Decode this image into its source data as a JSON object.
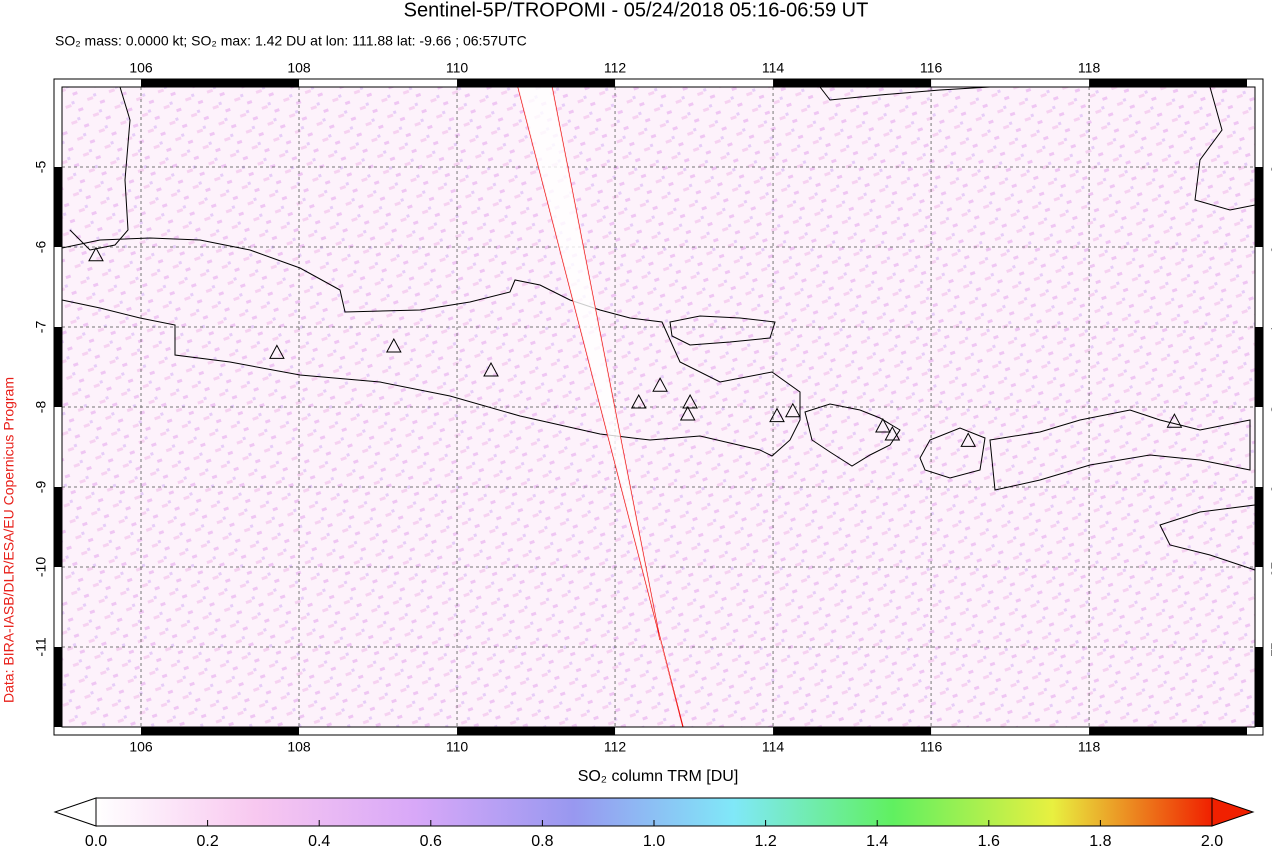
{
  "chart_data": {
    "type": "map",
    "title": "Sentinel-5P/TROPOMI - 05/24/2018 05:16-06:59 UT",
    "subtitle": "SO₂ mass: 0.0000 kt; SO₂ max: 1.42 DU at lon: 111.88 lat: -9.66 ; 06:57UTC",
    "credit": "Data: BIRA-IASB/DLR/ESA/EU Copernicus Program",
    "xlim": [
      105.0,
      120.1
    ],
    "ylim": [
      -12.0,
      -4.0
    ],
    "xticks": [
      106,
      108,
      110,
      112,
      114,
      116,
      118
    ],
    "yticks": [
      -5,
      -6,
      -7,
      -8,
      -9,
      -10,
      -11
    ],
    "volcanoes": {
      "lon": [
        105.43,
        107.72,
        109.2,
        110.43,
        112.3,
        112.57,
        112.95,
        112.92,
        114.05,
        114.25,
        115.39,
        115.51,
        116.47,
        119.08
      ],
      "lat": [
        -6.11,
        -7.33,
        -7.25,
        -7.55,
        -7.95,
        -7.74,
        -7.95,
        -8.1,
        -8.12,
        -8.06,
        -8.25,
        -8.35,
        -8.43,
        -8.19
      ]
    },
    "colorbar": {
      "label": "SO₂ column TRM [DU]",
      "range": [
        0,
        2
      ],
      "ticks": [
        {
          "value": 0,
          "label": "0.0"
        },
        {
          "value": 0.2,
          "label": "0.2"
        },
        {
          "value": 0.4,
          "label": "0.4"
        },
        {
          "value": 0.6,
          "label": "0.6"
        },
        {
          "value": 0.8,
          "label": "0.8"
        },
        {
          "value": 1.0,
          "label": "1.0"
        },
        {
          "value": 1.2,
          "label": "1.2"
        },
        {
          "value": 1.4,
          "label": "1.4"
        },
        {
          "value": 1.6,
          "label": "1.6"
        },
        {
          "value": 1.8,
          "label": "1.8"
        },
        {
          "value": 2.0,
          "label": "2.0"
        }
      ],
      "colors": [
        "#ffffff",
        "#f8c8f0",
        "#d8a8f8",
        "#9898f0",
        "#80e8f8",
        "#60f060",
        "#e8f040",
        "#f02000"
      ]
    }
  }
}
